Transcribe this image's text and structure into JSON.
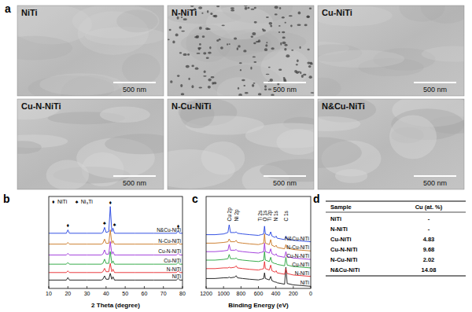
{
  "panel_labels": [
    "a",
    "b",
    "c",
    "d"
  ],
  "sem_images": {
    "scale_bar": "500 nm",
    "labels": [
      "NiTi",
      "N-NiTi",
      "Cu-NiTi",
      "Cu-N-NiTi",
      "N-Cu-NiTi",
      "N&Cu-NiTi"
    ]
  },
  "chart_data": [
    {
      "type": "line",
      "x_label": "2 Theta (degree)",
      "x": [
        10,
        19.2,
        20,
        20.8,
        30,
        37.5,
        38.3,
        39.2,
        40,
        41.4,
        42.2,
        43,
        43.6,
        44.4,
        45.5,
        55,
        65,
        76.8,
        77.7,
        78.6,
        80
      ],
      "xlim": [
        10,
        80
      ],
      "xticks": [
        10,
        20,
        30,
        40,
        50,
        60,
        70,
        80
      ],
      "ylim": [
        0,
        110
      ],
      "tick_labels": "x",
      "phase_legend": [
        {
          "symbol": "♦",
          "label": "NiTi"
        },
        {
          "symbol": "♠",
          "label": "Ni₃Ti"
        }
      ],
      "annotations": [
        {
          "x": 20,
          "y": 73,
          "label": "♦"
        },
        {
          "x": 39.2,
          "y": 76,
          "label": "♠"
        },
        {
          "x": 42.2,
          "y": 101,
          "label": "♦"
        },
        {
          "x": 44.4,
          "y": 74,
          "label": "♠"
        },
        {
          "x": 77.7,
          "y": 72,
          "label": "♦"
        }
      ],
      "series": [
        {
          "name": "NiTi",
          "color": "#111111",
          "values": [
            10,
            10,
            13,
            10,
            10,
            10,
            11,
            15,
            11,
            11,
            18,
            11,
            14,
            10,
            10,
            10,
            10,
            10,
            12,
            10,
            10
          ]
        },
        {
          "name": "N-NiTi",
          "color": "#e8262a",
          "values": [
            19,
            19,
            21,
            19,
            19,
            19,
            20,
            24,
            20,
            20,
            30,
            20,
            23,
            19,
            19,
            19,
            19,
            19,
            21,
            19,
            19
          ]
        },
        {
          "name": "Cu-NiTi",
          "color": "#22a33a",
          "values": [
            29,
            29,
            31,
            29,
            29,
            29,
            30,
            35,
            30,
            30,
            44,
            30,
            33,
            29,
            29,
            29,
            29,
            29,
            31,
            29,
            29
          ]
        },
        {
          "name": "Cu-N-NiTi",
          "color": "#9b30d9",
          "values": [
            40,
            40,
            42,
            40,
            40,
            40,
            41,
            46,
            41,
            41,
            56,
            41,
            44,
            40,
            40,
            40,
            40,
            40,
            42,
            40,
            40
          ]
        },
        {
          "name": "N-Cu-NiTi",
          "color": "#c8741e",
          "values": [
            53,
            53,
            55,
            53,
            53,
            53,
            54,
            59,
            54,
            54,
            70,
            54,
            57,
            53,
            53,
            53,
            53,
            53,
            55,
            53,
            53
          ]
        },
        {
          "name": "N&Cu-NiTi",
          "color": "#1f3fe0",
          "values": [
            66,
            66,
            70,
            66,
            66,
            66,
            67,
            73,
            67,
            68,
            98,
            68,
            72,
            66,
            66,
            66,
            66,
            66,
            69,
            66,
            66
          ]
        }
      ]
    },
    {
      "type": "line",
      "x_label": "Binding Energy (eV)",
      "x": [
        1200,
        1100,
        1000,
        950,
        935,
        920,
        870,
        855,
        840,
        780,
        700,
        600,
        570,
        565,
        540,
        530,
        520,
        475,
        459,
        445,
        410,
        397,
        385,
        300,
        285,
        270,
        200,
        100,
        0
      ],
      "xlim": [
        1200,
        0
      ],
      "xticks": [
        1200,
        1000,
        800,
        600,
        400,
        200,
        0
      ],
      "ylim": [
        0,
        130
      ],
      "tick_labels": "x",
      "annotations": [
        {
          "x": 935,
          "y": 95,
          "label": "Cu 2p"
        },
        {
          "x": 855,
          "y": 95,
          "label": "Ni 2p"
        },
        {
          "x": 580,
          "y": 95,
          "label": "Ti 2s"
        },
        {
          "x": 525,
          "y": 95,
          "label": "O 1s"
        },
        {
          "x": 470,
          "y": 95,
          "label": "Ti 2p"
        },
        {
          "x": 400,
          "y": 95,
          "label": "N 1s"
        },
        {
          "x": 285,
          "y": 95,
          "label": "C 1s"
        }
      ],
      "series": [
        {
          "name": "NiTi",
          "color": "#111111",
          "values": [
            14,
            14,
            15,
            15,
            16,
            15,
            16,
            18,
            15,
            14,
            13,
            12,
            13,
            13,
            14,
            22,
            14,
            12,
            17,
            11,
            9,
            9,
            8,
            6,
            30,
            7,
            5,
            4,
            3
          ]
        },
        {
          "name": "N-NiTi",
          "color": "#e8262a",
          "values": [
            28,
            28,
            29,
            29,
            30,
            29,
            30,
            32,
            29,
            28,
            27,
            26,
            27,
            27,
            28,
            38,
            28,
            26,
            33,
            25,
            23,
            25,
            22,
            20,
            28,
            21,
            19,
            18,
            17
          ]
        },
        {
          "name": "Cu-NiTi",
          "color": "#22a33a",
          "values": [
            40,
            40,
            41,
            42,
            48,
            42,
            42,
            43,
            41,
            40,
            39,
            38,
            39,
            39,
            40,
            52,
            40,
            38,
            44,
            37,
            35,
            35,
            34,
            32,
            44,
            33,
            31,
            30,
            29
          ]
        },
        {
          "name": "Cu-N-NiTi",
          "color": "#9b30d9",
          "values": [
            52,
            52,
            53,
            54,
            62,
            54,
            54,
            55,
            53,
            52,
            51,
            50,
            51,
            51,
            52,
            64,
            52,
            50,
            56,
            49,
            47,
            49,
            46,
            44,
            52,
            45,
            43,
            42,
            41
          ]
        },
        {
          "name": "N-Cu-NiTi",
          "color": "#c8741e",
          "values": [
            64,
            64,
            65,
            66,
            70,
            66,
            66,
            68,
            65,
            64,
            63,
            62,
            63,
            63,
            64,
            77,
            64,
            62,
            69,
            61,
            59,
            61,
            58,
            56,
            62,
            57,
            55,
            54,
            53
          ]
        },
        {
          "name": "N&Cu-NiTi",
          "color": "#1f3fe0",
          "values": [
            76,
            76,
            77,
            79,
            90,
            79,
            79,
            80,
            78,
            77,
            76,
            75,
            76,
            76,
            77,
            88,
            77,
            75,
            80,
            74,
            72,
            74,
            71,
            69,
            74,
            70,
            68,
            67,
            66
          ]
        }
      ]
    }
  ],
  "table": {
    "header": [
      "Sample",
      "Cu (at. %)"
    ],
    "rows": [
      [
        "NiTi",
        "-"
      ],
      [
        "N-NiTi",
        "-"
      ],
      [
        "Cu-NiTi",
        4.83
      ],
      [
        "Cu-N-NiTi",
        9.68
      ],
      [
        "N-Cu-NiTi",
        2.02
      ],
      [
        "N&Cu-NiTi",
        14.08
      ]
    ]
  }
}
